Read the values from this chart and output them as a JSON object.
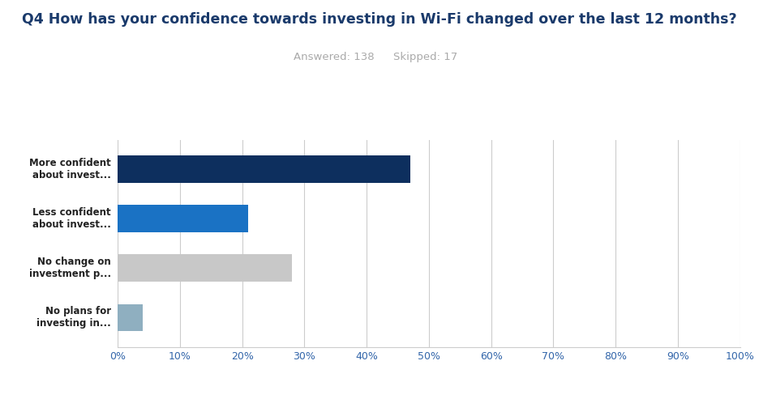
{
  "title": "Q4 How has your confidence towards investing in Wi-Fi changed over the last 12 months?",
  "subtitle_answered": "Answered: 138",
  "subtitle_skipped": "Skipped: 17",
  "categories": [
    "More confident\nabout invest...",
    "Less confident\nabout invest...",
    "No change on\ninvestment p...",
    "No plans for\ninvesting in..."
  ],
  "values": [
    47,
    21,
    28,
    4
  ],
  "bar_colors": [
    "#0d2f5e",
    "#1a72c4",
    "#c8c8c8",
    "#8fafc0"
  ],
  "xlim": [
    0,
    100
  ],
  "xtick_values": [
    0,
    10,
    20,
    30,
    40,
    50,
    60,
    70,
    80,
    90,
    100
  ],
  "xtick_labels": [
    "0%",
    "10%",
    "20%",
    "30%",
    "40%",
    "50%",
    "60%",
    "70%",
    "80%",
    "90%",
    "100%"
  ],
  "title_color": "#1a3a6b",
  "subtitle_color": "#aaaaaa",
  "background_color": "#ffffff",
  "grid_color": "#cccccc",
  "title_fontsize": 12.5,
  "subtitle_fontsize": 9.5,
  "label_fontsize": 8.5,
  "tick_fontsize": 9,
  "bar_height": 0.55
}
